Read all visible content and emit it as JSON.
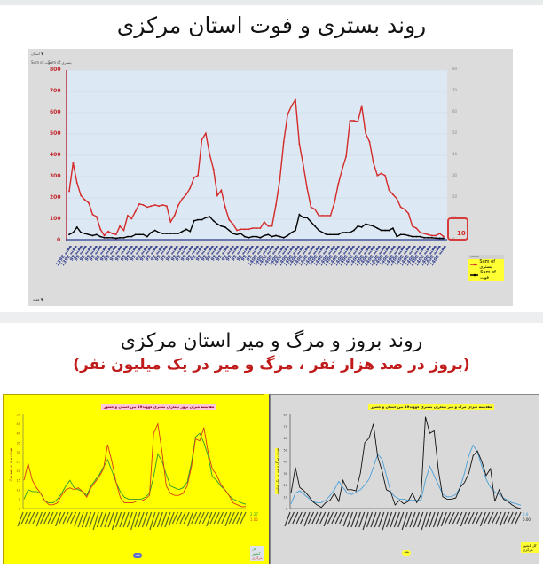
{
  "section1": {
    "title": "روند بستری و فوت استان مرکزی",
    "pivot_buttons": [
      "استان ▼",
      "Sum of فوت",
      "Sum of بستری"
    ],
    "legend": {
      "header": "Values",
      "items": [
        {
          "label": "Sum of بستری",
          "color": "#d42a2a"
        },
        {
          "label": "Sum of فوت",
          "color": "#000000"
        }
      ]
    },
    "last_value_label": "10",
    "footer_button": "هفته ▼"
  },
  "section2": {
    "title": "روند بروز و مرگ و میر استان مرکزی",
    "subtitle": "(بروز در صد هزار نفر ، مرگ و میر در یک میلیون نفر)",
    "chart_left": {
      "title": "مقایسه میزان بروز بیماران بستری کووید19 بین استان و کشور",
      "ylabel": "میزان بروز در صد هزار",
      "xlabel": "هفته",
      "legend": [
        {
          "label": "کل کشور",
          "color": "#2e9a2e"
        },
        {
          "label": "مرکزی",
          "color": "#d63a1a"
        }
      ],
      "end_values": [
        "2.27",
        "1.02"
      ],
      "background": "#ffff00"
    },
    "chart_right": {
      "title": "مقایسه میزان مرگ و میر بیماران بستری کووید19 بین استان و کشور",
      "ylabel": "میزان مرگ و میر در یک میلیون",
      "xlabel": "هفته",
      "legend": [
        {
          "label": "کل کشور",
          "color": "#4a9fd8"
        },
        {
          "label": "مرکزی",
          "color": "#111111"
        }
      ],
      "end_values": [
        "2.8",
        "0.00"
      ],
      "background": "#d9d9d9"
    }
  },
  "chart_data": [
    {
      "type": "line",
      "title": "روند بستری و فوت استان مرکزی",
      "xlabel": "هفته",
      "ylabel": "",
      "ylim": [
        0,
        800
      ],
      "yticks": [
        0,
        100,
        200,
        300,
        400,
        500,
        600,
        700,
        800
      ],
      "x_range": "هفته 1 اسفند 1398 – هفته 4 مهر 1400 (weekly)",
      "legend_position": "right-bottom",
      "grid": true,
      "series": [
        {
          "name": "Sum of بستری",
          "color": "#d42a2a",
          "values": [
            225,
            360,
            265,
            205,
            185,
            170,
            115,
            105,
            45,
            15,
            35,
            25,
            20,
            60,
            40,
            110,
            95,
            130,
            165,
            160,
            150,
            155,
            160,
            155,
            160,
            155,
            80,
            110,
            160,
            190,
            210,
            240,
            290,
            300,
            470,
            500,
            400,
            330,
            205,
            230,
            150,
            90,
            70,
            40,
            45,
            45,
            45,
            50,
            50,
            50,
            80,
            60,
            60,
            160,
            280,
            460,
            590,
            630,
            660,
            450,
            350,
            240,
            150,
            140,
            110,
            110,
            110,
            110,
            170,
            260,
            330,
            390,
            560,
            560,
            555,
            630,
            500,
            460,
            360,
            300,
            310,
            300,
            230,
            210,
            190,
            150,
            140,
            120,
            60,
            50,
            30,
            25,
            20,
            15,
            15,
            25,
            10
          ]
        },
        {
          "name": "Sum of فوت",
          "color": "#000000",
          "values": [
            20,
            30,
            55,
            30,
            25,
            20,
            15,
            20,
            10,
            5,
            5,
            5,
            2,
            5,
            5,
            10,
            10,
            20,
            20,
            20,
            10,
            30,
            40,
            30,
            25,
            25,
            25,
            25,
            25,
            35,
            45,
            35,
            85,
            90,
            90,
            100,
            105,
            85,
            70,
            60,
            55,
            40,
            25,
            20,
            25,
            10,
            5,
            10,
            10,
            5,
            15,
            20,
            10,
            15,
            10,
            5,
            15,
            30,
            40,
            115,
            100,
            100,
            80,
            60,
            40,
            30,
            20,
            20,
            20,
            20,
            30,
            30,
            30,
            40,
            60,
            55,
            70,
            65,
            60,
            50,
            40,
            40,
            40,
            50,
            10,
            20,
            20,
            15,
            10,
            10,
            10,
            5,
            5,
            5,
            3,
            2,
            2
          ]
        }
      ]
    },
    {
      "type": "line",
      "title": "مقایسه میزان بروز بیماران بستری کووید19 بین استان و کشور",
      "xlabel": "هفته",
      "ylabel": "میزان بروز در صد هزار",
      "ylim": [
        0,
        50
      ],
      "yticks": [
        0,
        5,
        10,
        15,
        20,
        25,
        30,
        35,
        40,
        45,
        50
      ],
      "series": [
        {
          "name": "کل کشور",
          "color": "#2e9a2e",
          "values": [
            5,
            10,
            9,
            9,
            8,
            4,
            3,
            3,
            5,
            8,
            12,
            15,
            11,
            10,
            9,
            7,
            12,
            15,
            18,
            22,
            26,
            20,
            14,
            9,
            6,
            5,
            5,
            5,
            5,
            6,
            8,
            17,
            29,
            25,
            18,
            12,
            11,
            10,
            11,
            14,
            24,
            38,
            40,
            35,
            28,
            17,
            15,
            12,
            10,
            7,
            5,
            4,
            3,
            2.27
          ]
        },
        {
          "name": "مرکزی",
          "color": "#d63a1a",
          "values": [
            15,
            24,
            15,
            11,
            8,
            4,
            2,
            2,
            3,
            7,
            10,
            11,
            10,
            11,
            9,
            6,
            11,
            14,
            17,
            21,
            34,
            25,
            14,
            6,
            3,
            3,
            3,
            4,
            4,
            5,
            7,
            40,
            45,
            30,
            12,
            8,
            7,
            7,
            8,
            12,
            22,
            37,
            36,
            43,
            30,
            21,
            18,
            13,
            10,
            7,
            3,
            2,
            1,
            1.02
          ]
        }
      ]
    },
    {
      "type": "line",
      "title": "مقایسه میزان مرگ و میر بیماران بستری کووید19 بین استان و کشور",
      "xlabel": "هفته",
      "ylabel": "میزان مرگ و میر در یک میلیون",
      "ylim": [
        0,
        80
      ],
      "yticks": [
        0,
        10,
        20,
        30,
        40,
        50,
        60,
        70,
        80
      ],
      "series": [
        {
          "name": "کل کشور",
          "color": "#4a9fd8",
          "values": [
            4,
            13,
            15,
            12,
            9,
            6,
            5,
            5,
            7,
            11,
            16,
            23,
            18,
            13,
            12,
            14,
            16,
            20,
            25,
            35,
            46,
            42,
            28,
            14,
            10,
            8,
            8,
            7,
            7,
            7,
            7,
            24,
            36,
            28,
            20,
            12,
            10,
            10,
            12,
            18,
            30,
            45,
            54,
            48,
            36,
            25,
            18,
            14,
            12,
            9,
            7,
            5,
            4,
            2.8
          ]
        },
        {
          "name": "مرکزی",
          "color": "#111111",
          "values": [
            13,
            35,
            18,
            15,
            11,
            6,
            3,
            1,
            5,
            7,
            13,
            6,
            24,
            16,
            16,
            15,
            30,
            56,
            60,
            72,
            44,
            32,
            16,
            14,
            3,
            7,
            4,
            6,
            13,
            5,
            12,
            78,
            64,
            66,
            32,
            10,
            8,
            8,
            9,
            18,
            22,
            30,
            45,
            49,
            40,
            28,
            34,
            6,
            16,
            8,
            6,
            3,
            1,
            0
          ]
        }
      ]
    }
  ]
}
